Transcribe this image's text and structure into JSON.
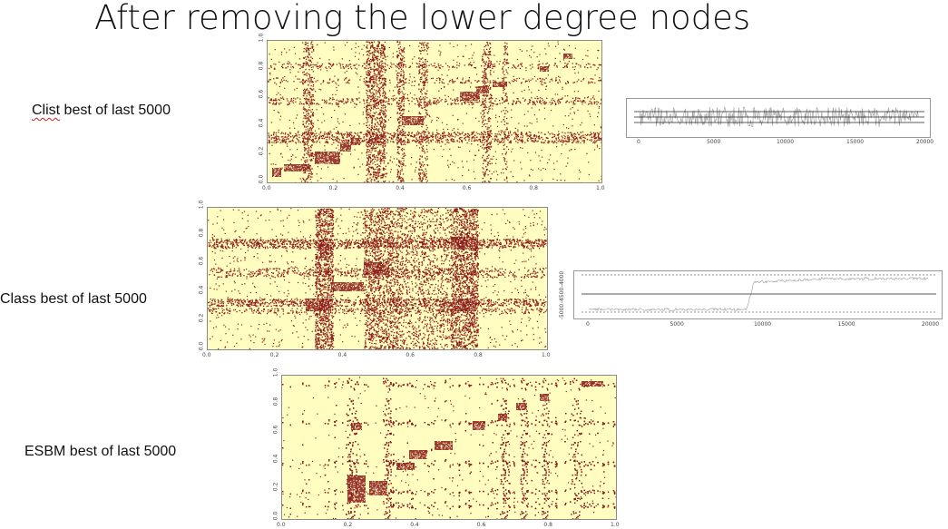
{
  "slide": {
    "title": "After removing the lower degree nodes"
  },
  "rows": [
    {
      "label_main": "Clist",
      "label_rest": " best of last 5000",
      "label_flagged_word": true
    },
    {
      "label_main": "Class",
      "label_rest": " best of last 5000",
      "label_flagged_word": false
    },
    {
      "label_main": "ESBM",
      "label_rest": " best of last 5000",
      "label_flagged_word": false
    }
  ],
  "heatmaps": [
    {
      "x_ticks": [
        "0.0",
        "0.2",
        "0.4",
        "0.6",
        "0.8",
        "1.0"
      ],
      "y_ticks": [
        "0.0",
        "0.2",
        "0.4",
        "0.6",
        "0.8",
        "1.0"
      ]
    },
    {
      "x_ticks": [
        "0.0",
        "0.2",
        "0.4",
        "0.6",
        "0.8",
        "1.0"
      ],
      "y_ticks": [
        "0.0",
        "0.2",
        "0.4",
        "0.6",
        "0.8",
        "1.0"
      ]
    },
    {
      "x_ticks": [
        "0.0",
        "0.2",
        "0.4",
        "0.6",
        "0.8",
        "1.0"
      ],
      "y_ticks": [
        "0.0",
        "0.2",
        "0.4",
        "0.6",
        "0.8",
        "1.0"
      ]
    }
  ],
  "traces": [
    {
      "x_ticks": [
        "0",
        "5000",
        "10000",
        "15000",
        "20000"
      ]
    },
    {
      "x_ticks": [
        "0",
        "5000",
        "10000",
        "15000",
        "20000"
      ],
      "y_ticks": [
        "-5000",
        "-4500",
        "-4000"
      ],
      "y_label": ""
    }
  ],
  "colors": {
    "background_cell": "#fffec0",
    "filled_cell": "#8b1a1a",
    "trace_line": "#9a9a9a"
  }
}
